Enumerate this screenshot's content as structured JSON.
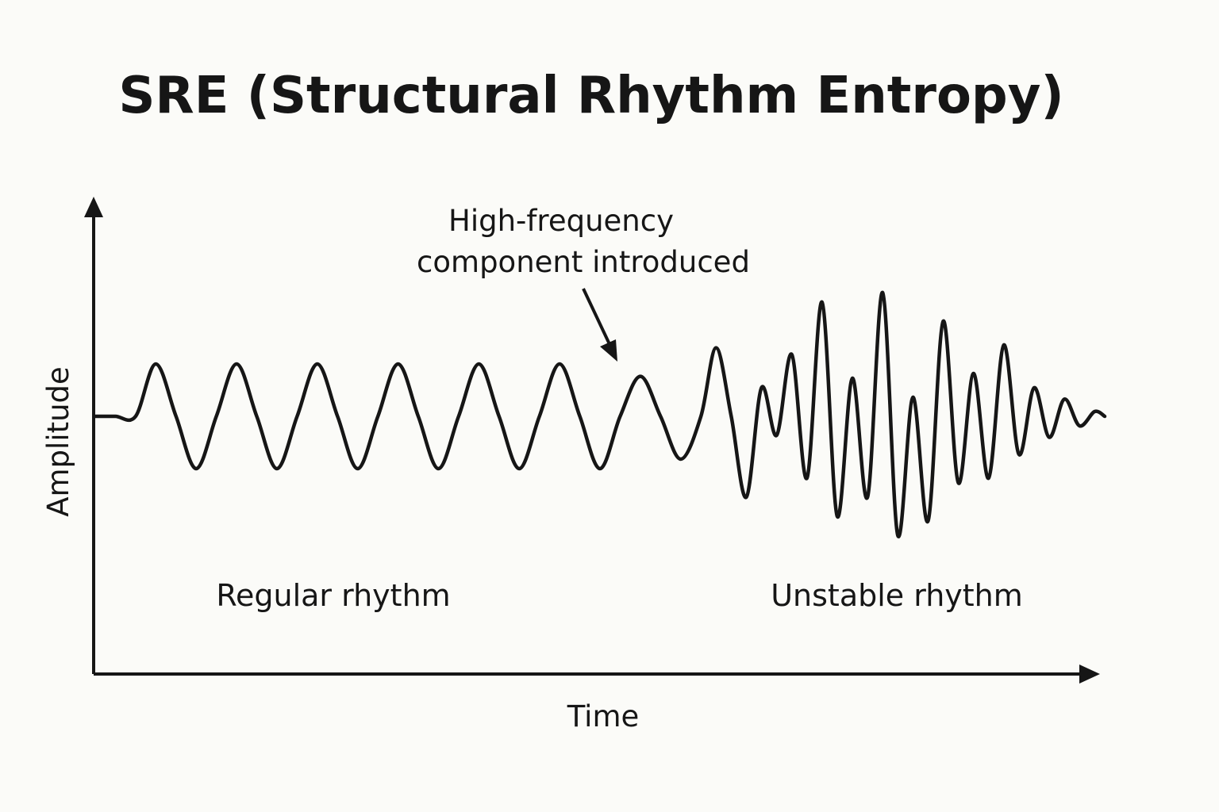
{
  "chart_data": {
    "type": "line",
    "title": "SRE (Structural Rhythm Entropy)",
    "xlabel": "Time",
    "ylabel": "Amplitude",
    "ylim": [
      -1,
      1
    ],
    "grid": false,
    "legend": "none",
    "annotations": [
      {
        "lines": [
          "High-frequency",
          "component introduced"
        ],
        "x": 0.5
      }
    ],
    "regions": [
      {
        "label": "Regular rhythm"
      },
      {
        "label": "Unstable rhythm"
      }
    ],
    "series": [
      {
        "color": "#161616",
        "x": [
          0.0,
          0.02,
          0.04,
          0.06,
          0.08,
          0.1,
          0.12,
          0.14,
          0.16,
          0.18,
          0.2,
          0.22,
          0.24,
          0.26,
          0.28,
          0.3,
          0.32,
          0.34,
          0.36,
          0.38,
          0.4,
          0.42,
          0.44,
          0.46,
          0.48,
          0.5,
          0.52,
          0.54,
          0.56,
          0.58,
          0.6,
          0.615,
          0.63,
          0.645,
          0.66,
          0.675,
          0.69,
          0.705,
          0.72,
          0.735,
          0.75,
          0.765,
          0.78,
          0.795,
          0.81,
          0.825,
          0.84,
          0.855,
          0.87,
          0.885,
          0.9,
          0.915,
          0.93,
          0.945,
          0.96,
          0.975,
          0.99,
          1.0
        ],
        "y": [
          0.0,
          0.0,
          0.0,
          0.55,
          0.0,
          -0.55,
          0.0,
          0.55,
          0.0,
          -0.55,
          0.0,
          0.55,
          0.0,
          -0.55,
          0.0,
          0.55,
          0.0,
          -0.55,
          0.0,
          0.55,
          0.0,
          -0.55,
          0.0,
          0.55,
          0.0,
          -0.55,
          0.0,
          0.42,
          0.0,
          -0.45,
          0.0,
          0.72,
          0.0,
          -0.85,
          0.3,
          -0.2,
          0.65,
          -0.65,
          1.2,
          -1.05,
          0.4,
          -0.85,
          1.3,
          -1.25,
          0.2,
          -1.1,
          1.0,
          -0.7,
          0.45,
          -0.65,
          0.75,
          -0.4,
          0.3,
          -0.22,
          0.18,
          -0.1,
          0.05,
          0.0
        ]
      }
    ]
  }
}
